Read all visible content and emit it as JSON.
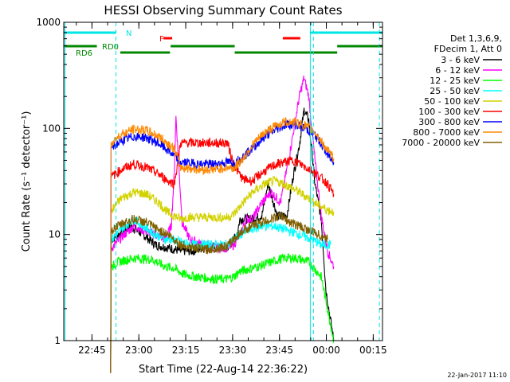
{
  "chart_data": {
    "type": "line",
    "title": "HESSI Observing Summary Count Rates",
    "xlabel": "Start Time (22-Aug-14 22:36:22)",
    "ylabel": "Count Rate (s⁻¹ detector⁻¹)",
    "yscale": "log",
    "ylim": [
      1,
      1000
    ],
    "xlim_minutes": [
      -0.4,
      101.6
    ],
    "x_tick_labels": [
      "22:45",
      "23:00",
      "23:15",
      "23:30",
      "23:45",
      "00:00",
      "00:15"
    ],
    "y_tick_labels": [
      "1",
      "10",
      "100",
      "1000"
    ],
    "legend_position": "right",
    "legend_header": [
      "Det 1,3,6,9,",
      "FDecim 1, Att 0"
    ],
    "series": [
      {
        "name": "3 - 6 keV",
        "color": "#000000",
        "points": [
          [
            14.5,
            0
          ],
          [
            15,
            9
          ],
          [
            17,
            10
          ],
          [
            21,
            12
          ],
          [
            25,
            10
          ],
          [
            29,
            8
          ],
          [
            33,
            7.5
          ],
          [
            37,
            7
          ],
          [
            41,
            7
          ],
          [
            44,
            7.5
          ],
          [
            51,
            7.5
          ],
          [
            53,
            8
          ],
          [
            55,
            10
          ],
          [
            56,
            14
          ],
          [
            60,
            14
          ],
          [
            63,
            15
          ],
          [
            65,
            30
          ],
          [
            68,
            15
          ],
          [
            71,
            15
          ],
          [
            73,
            35
          ],
          [
            75,
            70
          ],
          [
            76.5,
            150
          ],
          [
            78,
            120
          ],
          [
            80,
            30
          ],
          [
            82,
            14
          ],
          [
            83.5,
            3
          ],
          [
            86,
            1
          ]
        ]
      },
      {
        "name": "6 - 12 keV",
        "color": "#ff00ff",
        "points": [
          [
            14.5,
            0
          ],
          [
            15,
            7.5
          ],
          [
            19,
            10
          ],
          [
            22,
            12
          ],
          [
            25,
            11
          ],
          [
            29,
            10
          ],
          [
            32,
            9
          ],
          [
            34,
            12
          ],
          [
            35,
            40
          ],
          [
            35.5,
            130
          ],
          [
            36.5,
            40
          ],
          [
            37.5,
            13
          ],
          [
            40,
            9
          ],
          [
            44,
            8
          ],
          [
            48,
            7.5
          ],
          [
            52,
            7.5
          ],
          [
            54,
            8
          ],
          [
            56,
            10
          ],
          [
            58,
            14
          ],
          [
            60,
            14
          ],
          [
            63,
            20
          ],
          [
            66,
            25
          ],
          [
            69,
            20
          ],
          [
            72,
            60
          ],
          [
            75,
            200
          ],
          [
            76.5,
            300
          ],
          [
            78,
            200
          ],
          [
            80,
            50
          ],
          [
            82,
            15
          ],
          [
            84,
            7
          ],
          [
            86,
            5
          ]
        ]
      },
      {
        "name": "12 - 25 keV",
        "color": "#00ff00",
        "points": [
          [
            14.5,
            0
          ],
          [
            15,
            5
          ],
          [
            17,
            5.5
          ],
          [
            22,
            6
          ],
          [
            28,
            5.8
          ],
          [
            32,
            5
          ],
          [
            35,
            4.8
          ],
          [
            38,
            4.2
          ],
          [
            42,
            4
          ],
          [
            48,
            3.8
          ],
          [
            52,
            3.8
          ],
          [
            54,
            4
          ],
          [
            56,
            4.5
          ],
          [
            62,
            5
          ],
          [
            66,
            5.5
          ],
          [
            70,
            6
          ],
          [
            74,
            6
          ],
          [
            78,
            5.5
          ],
          [
            82,
            4
          ],
          [
            84,
            2
          ],
          [
            86,
            1
          ]
        ]
      },
      {
        "name": "25 - 50 keV",
        "color": "#00ffff",
        "points": [
          [
            14.5,
            0
          ],
          [
            15,
            9
          ],
          [
            19,
            12
          ],
          [
            22,
            14
          ],
          [
            25,
            12
          ],
          [
            29,
            10
          ],
          [
            32,
            9
          ],
          [
            34,
            9
          ],
          [
            37,
            8.5
          ],
          [
            41,
            8
          ],
          [
            44,
            8
          ],
          [
            48,
            8
          ],
          [
            52,
            8
          ],
          [
            54,
            9
          ],
          [
            56,
            10
          ],
          [
            59,
            11
          ],
          [
            63,
            12
          ],
          [
            67,
            12
          ],
          [
            71,
            11
          ],
          [
            75,
            10
          ],
          [
            79,
            9
          ],
          [
            82,
            8
          ],
          [
            85,
            8
          ]
        ]
      },
      {
        "name": "50 - 100 keV",
        "color": "#d2d200",
        "points": [
          [
            14.5,
            0
          ],
          [
            15,
            17
          ],
          [
            18,
            22
          ],
          [
            22,
            25
          ],
          [
            26,
            24
          ],
          [
            30,
            20
          ],
          [
            33,
            16
          ],
          [
            35,
            15
          ],
          [
            37,
            14
          ],
          [
            39,
            14.5
          ],
          [
            46,
            14.5
          ],
          [
            52,
            14.5
          ],
          [
            54,
            15.5
          ],
          [
            57,
            20
          ],
          [
            60,
            25
          ],
          [
            64,
            30
          ],
          [
            67,
            32
          ],
          [
            70,
            30
          ],
          [
            74,
            26
          ],
          [
            78,
            22
          ],
          [
            81,
            19
          ],
          [
            84,
            17
          ],
          [
            86,
            16.5
          ]
        ]
      },
      {
        "name": "100 - 300 keV",
        "color": "#ff0000",
        "points": [
          [
            14.5,
            0
          ],
          [
            15,
            35
          ],
          [
            18,
            41
          ],
          [
            22,
            46
          ],
          [
            26,
            43
          ],
          [
            30,
            37
          ],
          [
            33,
            32
          ],
          [
            35,
            30
          ],
          [
            37,
            73
          ],
          [
            43,
            73
          ],
          [
            48,
            73
          ],
          [
            52,
            73
          ],
          [
            54,
            45
          ],
          [
            57,
            33
          ],
          [
            60,
            32
          ],
          [
            63,
            38
          ],
          [
            67,
            45
          ],
          [
            70,
            48
          ],
          [
            73,
            50
          ],
          [
            76,
            45
          ],
          [
            79,
            40
          ],
          [
            82,
            34
          ],
          [
            84,
            30
          ],
          [
            86,
            24
          ]
        ]
      },
      {
        "name": "300 - 800 keV",
        "color": "#0000ff",
        "points": [
          [
            14.5,
            0
          ],
          [
            15,
            66
          ],
          [
            18,
            76
          ],
          [
            22,
            84
          ],
          [
            26,
            82
          ],
          [
            30,
            72
          ],
          [
            33,
            62
          ],
          [
            35,
            55
          ],
          [
            37,
            48
          ],
          [
            43,
            46
          ],
          [
            48,
            46
          ],
          [
            52,
            48
          ],
          [
            54,
            47
          ],
          [
            57,
            54
          ],
          [
            60,
            65
          ],
          [
            64,
            84
          ],
          [
            68,
            100
          ],
          [
            71,
            110
          ],
          [
            74,
            108
          ],
          [
            77,
            100
          ],
          [
            80,
            86
          ],
          [
            82,
            72
          ],
          [
            84,
            56
          ],
          [
            86,
            48
          ]
        ]
      },
      {
        "name": "800 - 7000 keV",
        "color": "#ff8800",
        "points": [
          [
            14.5,
            0
          ],
          [
            15,
            74
          ],
          [
            18,
            88
          ],
          [
            22,
            98
          ],
          [
            26,
            96
          ],
          [
            30,
            84
          ],
          [
            33,
            72
          ],
          [
            35,
            64
          ],
          [
            37,
            43
          ],
          [
            43,
            41
          ],
          [
            48,
            41
          ],
          [
            52,
            43
          ],
          [
            54,
            42
          ],
          [
            57,
            52
          ],
          [
            60,
            70
          ],
          [
            64,
            92
          ],
          [
            68,
            108
          ],
          [
            71,
            116
          ],
          [
            74,
            114
          ],
          [
            77,
            106
          ],
          [
            80,
            92
          ],
          [
            82,
            76
          ],
          [
            84,
            62
          ],
          [
            86,
            52
          ]
        ]
      },
      {
        "name": "7000 - 20000 keV",
        "color": "#806000",
        "points": [
          [
            14.5,
            0
          ],
          [
            15,
            11
          ],
          [
            19,
            13
          ],
          [
            22,
            14
          ],
          [
            26,
            13
          ],
          [
            30,
            11
          ],
          [
            33,
            10
          ],
          [
            35,
            9
          ],
          [
            37,
            8
          ],
          [
            41,
            7.5
          ],
          [
            45,
            7.2
          ],
          [
            49,
            7.5
          ],
          [
            52,
            7.8
          ],
          [
            54,
            9
          ],
          [
            57,
            11
          ],
          [
            60,
            12
          ],
          [
            63,
            13
          ],
          [
            66,
            14
          ],
          [
            69,
            15
          ],
          [
            72,
            13
          ],
          [
            75,
            12
          ],
          [
            78,
            11
          ],
          [
            81,
            10
          ],
          [
            84,
            9
          ]
        ]
      }
    ],
    "bars": [
      {
        "label": "N",
        "color": "#00e5e5",
        "segments": [
          [
            -0.4,
            16.3
          ],
          [
            78.5,
            101.6
          ]
        ]
      },
      {
        "label": "F",
        "color": "#ff0000",
        "segments": [
          [
            31.5,
            34.3
          ],
          [
            69.7,
            75.3
          ]
        ]
      },
      {
        "label": "RD0",
        "color": "#008800",
        "segments": [
          [
            -0.4,
            10.2
          ],
          [
            33.8,
            54.3
          ],
          [
            87.1,
            101.6
          ]
        ]
      },
      {
        "label": "RD6",
        "color": "#008800",
        "segments": [
          [
            17.7,
            33.6
          ],
          [
            54.3,
            87.1
          ]
        ]
      }
    ],
    "vertical_lines": [
      {
        "x": 0.0,
        "color": "#00e5e5",
        "style": "solid"
      },
      {
        "x": 16.3,
        "color": "#00e5e5",
        "style": "dashed"
      },
      {
        "x": 78.5,
        "color": "#00e5e5",
        "style": "solid"
      },
      {
        "x": 79.5,
        "color": "#00e5e5",
        "style": "dashed"
      },
      {
        "x": 100.6,
        "color": "#00e5e5",
        "style": "dashed"
      }
    ],
    "x_tick_values_minutes": [
      8.63,
      23.63,
      38.63,
      53.63,
      68.63,
      83.63,
      98.63
    ]
  },
  "footer_date": "22-Jan-2017 11:10"
}
